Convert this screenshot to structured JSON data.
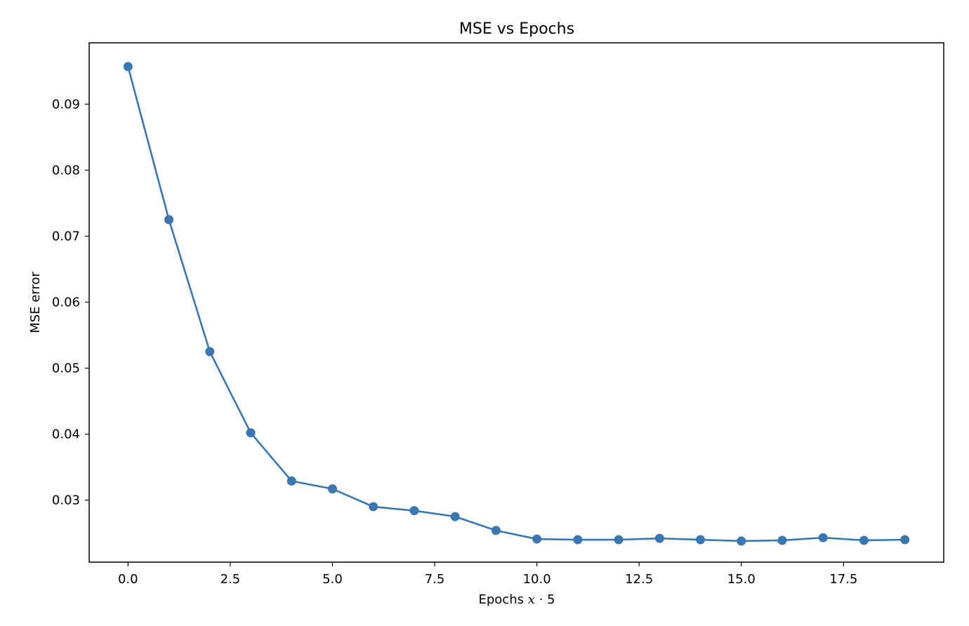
{
  "chart_data": {
    "type": "line",
    "title": "MSE vs Epochs",
    "xlabel_prefix": "Epochs ",
    "xlabel_var": "x",
    "xlabel_suffix": " · 5",
    "ylabel": "MSE error",
    "xlim": [
      -0.95,
      19.95
    ],
    "ylim": [
      0.0206,
      0.0993
    ],
    "xticks": [
      0.0,
      2.5,
      5.0,
      7.5,
      10.0,
      12.5,
      15.0,
      17.5
    ],
    "xtick_labels": [
      "0.0",
      "2.5",
      "5.0",
      "7.5",
      "10.0",
      "12.5",
      "15.0",
      "17.5"
    ],
    "yticks": [
      0.03,
      0.04,
      0.05,
      0.06,
      0.07,
      0.08,
      0.09
    ],
    "ytick_labels": [
      "0.03",
      "0.04",
      "0.05",
      "0.06",
      "0.07",
      "0.08",
      "0.09"
    ],
    "grid": false,
    "series": [
      {
        "color": "#3a76af",
        "marker": "circle",
        "x": [
          0,
          1,
          2,
          3,
          4,
          5,
          6,
          7,
          8,
          9,
          10,
          11,
          12,
          13,
          14,
          15,
          16,
          17,
          18,
          19
        ],
        "y": [
          0.0957,
          0.0725,
          0.0525,
          0.0402,
          0.0329,
          0.0317,
          0.029,
          0.0284,
          0.0275,
          0.0254,
          0.0241,
          0.024,
          0.024,
          0.0242,
          0.024,
          0.0238,
          0.0239,
          0.0243,
          0.0239,
          0.024
        ]
      }
    ]
  }
}
